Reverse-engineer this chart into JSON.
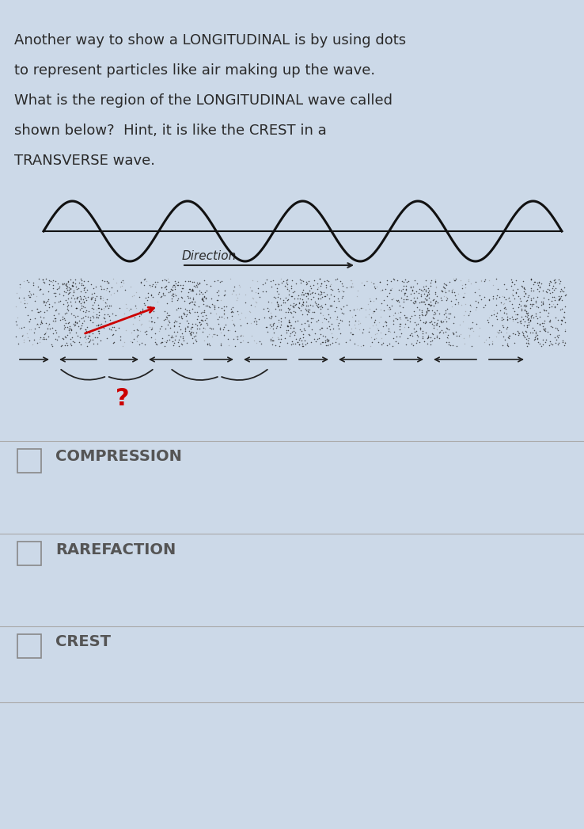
{
  "bg_color": "#ccd9e8",
  "text_color": "#2a2a2a",
  "paragraph": [
    "Another way to show a LONGITUDINAL is by using dots",
    "to represent particles like air making up the wave.",
    "What is the region of the LONGITUDINAL wave called",
    "shown below?  Hint, it is like the CREST in a",
    "TRANSVERSE wave."
  ],
  "direction_label": "Direction",
  "question_mark": "?",
  "question_mark_color": "#cc0000",
  "choices": [
    "COMPRESSION",
    "RAREFACTION",
    "CREST"
  ],
  "choice_text_color": "#555555",
  "divider_color": "#aaaaaa",
  "wave_color": "#111111",
  "arrow_color": "#222222",
  "dot_dense_color": "#1a1a1a",
  "dot_sparse_color": "#888888",
  "red_arrow_color": "#cc0000"
}
